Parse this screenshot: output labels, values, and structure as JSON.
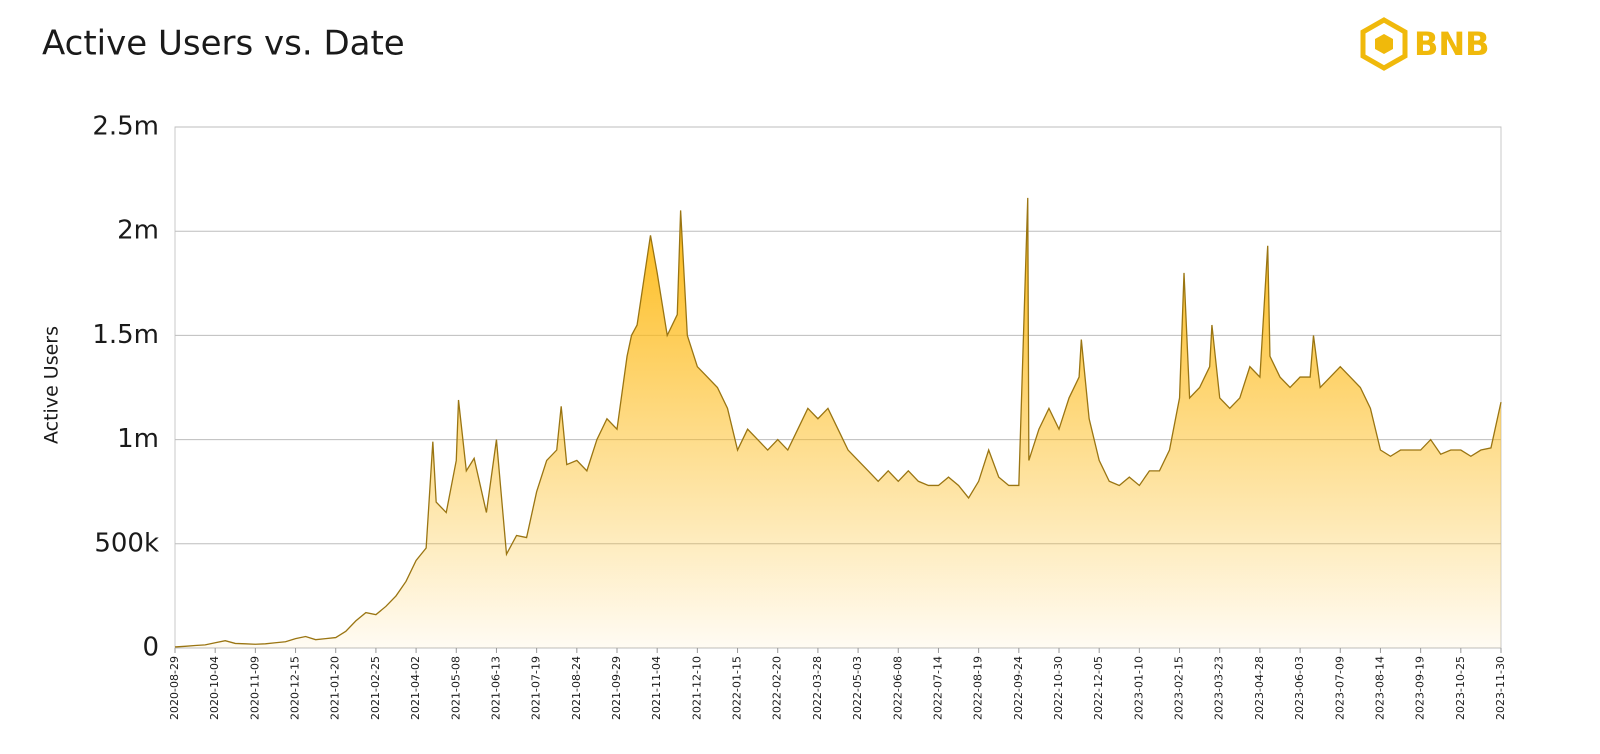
{
  "chart_data": {
    "type": "area",
    "title": "Active Users vs. Date",
    "brand": "BNB",
    "ylabel": "Active Users",
    "xlim": [
      "2020-08-29",
      "2023-11-30"
    ],
    "xticks": [
      "2020-08-29",
      "2020-10-04",
      "2020-11-09",
      "2020-12-15",
      "2021-01-20",
      "2021-02-25",
      "2021-04-02",
      "2021-05-08",
      "2021-06-13",
      "2021-07-19",
      "2021-08-24",
      "2021-09-29",
      "2021-11-04",
      "2021-12-10",
      "2022-01-15",
      "2022-02-20",
      "2022-03-28",
      "2022-05-03",
      "2022-06-08",
      "2022-07-14",
      "2022-08-19",
      "2022-09-24",
      "2022-10-30",
      "2022-12-05",
      "2023-01-10",
      "2023-02-15",
      "2023-03-23",
      "2023-04-28",
      "2023-06-03",
      "2023-07-09",
      "2023-08-14",
      "2023-09-19",
      "2023-10-25",
      "2023-11-30"
    ],
    "ylim": [
      0,
      2500000
    ],
    "yticks": [
      0,
      {
        "value": 500000,
        "label": "500k"
      },
      {
        "value": 1000000,
        "label": "1m"
      },
      {
        "value": 1500000,
        "label": "1.5m"
      },
      {
        "value": 2000000,
        "label": "2m"
      },
      {
        "value": 2500000,
        "label": "2.5m"
      }
    ],
    "grid": true,
    "series": [
      {
        "name": "Active Users",
        "color": "#9a7512",
        "fill": "#fdb913",
        "x": [
          "2020-08-29",
          "2020-09-07",
          "2020-09-16",
          "2020-09-25",
          "2020-10-04",
          "2020-10-13",
          "2020-10-22",
          "2020-10-31",
          "2020-11-09",
          "2020-11-18",
          "2020-11-27",
          "2020-12-06",
          "2020-12-15",
          "2020-12-24",
          "2021-01-02",
          "2021-01-11",
          "2021-01-20",
          "2021-01-29",
          "2021-02-07",
          "2021-02-16",
          "2021-02-25",
          "2021-03-06",
          "2021-03-15",
          "2021-03-24",
          "2021-04-02",
          "2021-04-11",
          "2021-04-17",
          "2021-04-20",
          "2021-04-29",
          "2021-05-08",
          "2021-05-10",
          "2021-05-17",
          "2021-05-24",
          "2021-06-04",
          "2021-06-13",
          "2021-06-22",
          "2021-07-01",
          "2021-07-10",
          "2021-07-19",
          "2021-07-28",
          "2021-08-06",
          "2021-08-10",
          "2021-08-15",
          "2021-08-24",
          "2021-09-02",
          "2021-09-11",
          "2021-09-20",
          "2021-09-29",
          "2021-10-08",
          "2021-10-12",
          "2021-10-17",
          "2021-10-29",
          "2021-11-04",
          "2021-11-13",
          "2021-11-22",
          "2021-11-25",
          "2021-12-01",
          "2021-12-10",
          "2021-12-19",
          "2021-12-28",
          "2022-01-06",
          "2022-01-15",
          "2022-01-24",
          "2022-02-02",
          "2022-02-11",
          "2022-02-20",
          "2022-03-01",
          "2022-03-10",
          "2022-03-19",
          "2022-03-28",
          "2022-04-06",
          "2022-04-15",
          "2022-04-24",
          "2022-05-03",
          "2022-05-12",
          "2022-05-21",
          "2022-05-30",
          "2022-06-08",
          "2022-06-17",
          "2022-06-26",
          "2022-07-05",
          "2022-07-14",
          "2022-07-23",
          "2022-08-01",
          "2022-08-10",
          "2022-08-19",
          "2022-08-28",
          "2022-09-06",
          "2022-09-15",
          "2022-09-24",
          "2022-10-02",
          "2022-10-03",
          "2022-10-12",
          "2022-10-21",
          "2022-10-30",
          "2022-11-08",
          "2022-11-17",
          "2022-11-19",
          "2022-11-26",
          "2022-12-05",
          "2022-12-14",
          "2022-12-23",
          "2023-01-01",
          "2023-01-10",
          "2023-01-19",
          "2023-01-28",
          "2023-02-06",
          "2023-02-15",
          "2023-02-19",
          "2023-02-24",
          "2023-03-05",
          "2023-03-14",
          "2023-03-16",
          "2023-03-23",
          "2023-04-01",
          "2023-04-10",
          "2023-04-19",
          "2023-04-28",
          "2023-05-05",
          "2023-05-07",
          "2023-05-16",
          "2023-05-25",
          "2023-06-03",
          "2023-06-12",
          "2023-06-15",
          "2023-06-21",
          "2023-06-30",
          "2023-07-09",
          "2023-07-18",
          "2023-07-27",
          "2023-08-05",
          "2023-08-14",
          "2023-08-23",
          "2023-09-01",
          "2023-09-10",
          "2023-09-19",
          "2023-09-28",
          "2023-10-07",
          "2023-10-16",
          "2023-10-25",
          "2023-11-03",
          "2023-11-12",
          "2023-11-21",
          "2023-11-30"
        ],
        "values": [
          5000,
          8000,
          12000,
          15000,
          25000,
          35000,
          22000,
          20000,
          18000,
          20000,
          25000,
          30000,
          45000,
          55000,
          40000,
          45000,
          50000,
          80000,
          130000,
          170000,
          160000,
          200000,
          250000,
          320000,
          420000,
          480000,
          990000,
          700000,
          650000,
          900000,
          1190000,
          850000,
          910000,
          650000,
          1000000,
          450000,
          540000,
          530000,
          750000,
          900000,
          950000,
          1160000,
          880000,
          900000,
          850000,
          1000000,
          1100000,
          1050000,
          1400000,
          1500000,
          1550000,
          1980000,
          1800000,
          1500000,
          1600000,
          2100000,
          1500000,
          1350000,
          1300000,
          1250000,
          1150000,
          950000,
          1050000,
          1000000,
          950000,
          1000000,
          950000,
          1050000,
          1150000,
          1100000,
          1150000,
          1050000,
          950000,
          900000,
          850000,
          800000,
          850000,
          800000,
          850000,
          800000,
          780000,
          780000,
          820000,
          780000,
          720000,
          800000,
          950000,
          820000,
          780000,
          780000,
          2160000,
          900000,
          1050000,
          1150000,
          1050000,
          1200000,
          1300000,
          1480000,
          1100000,
          900000,
          800000,
          780000,
          820000,
          780000,
          850000,
          850000,
          950000,
          1200000,
          1800000,
          1200000,
          1250000,
          1350000,
          1550000,
          1200000,
          1150000,
          1200000,
          1350000,
          1300000,
          1930000,
          1400000,
          1300000,
          1250000,
          1300000,
          1300000,
          1500000,
          1250000,
          1300000,
          1350000,
          1300000,
          1250000,
          1150000,
          950000,
          920000,
          950000,
          950000,
          950000,
          1000000,
          930000,
          950000,
          950000,
          920000,
          950000,
          960000,
          1180000
        ]
      }
    ]
  }
}
